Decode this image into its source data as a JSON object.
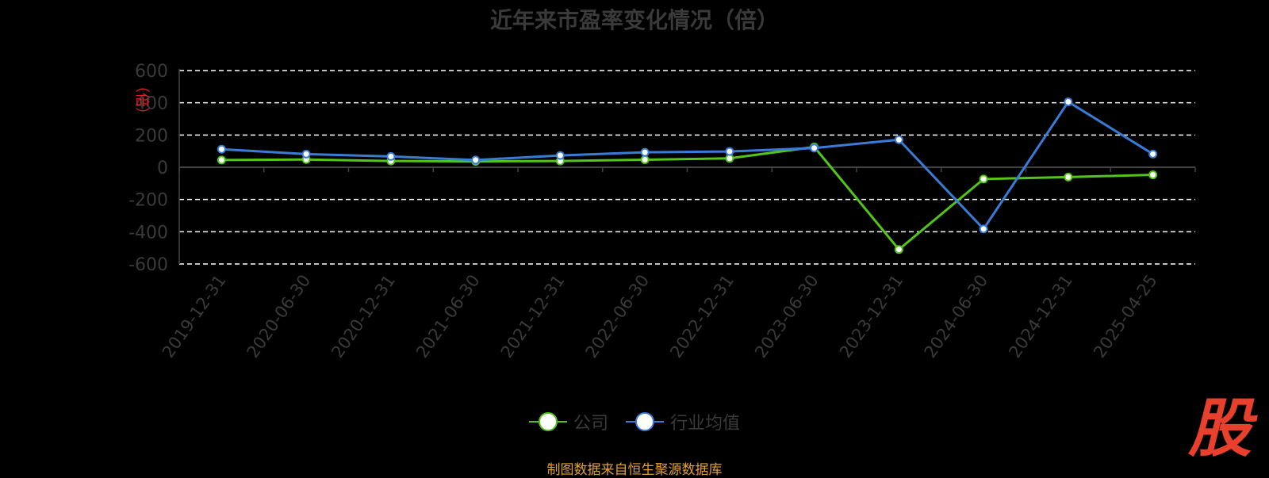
{
  "title": "近年来市盈率变化情况（倍）",
  "source_note": "制图数据来自恒生聚源数据库",
  "watermark": "股",
  "colors": {
    "company": "#52c41a",
    "industry": "#3a7bd5",
    "ylabel": "#e02020"
  },
  "legend": [
    {
      "label": "公司",
      "color": "#52c41a"
    },
    {
      "label": "行业均值",
      "color": "#3a7bd5"
    }
  ],
  "chart_data": {
    "type": "line",
    "title": "近年来市盈率变化情况（倍）",
    "ylabel": "倍",
    "ylim": [
      -600,
      600
    ],
    "yticks": [
      600,
      400,
      200,
      0,
      -200,
      -400,
      -600
    ],
    "grid": true,
    "legend_position": "bottom",
    "categories": [
      "2019-12-31",
      "2020-06-30",
      "2020-12-31",
      "2021-06-30",
      "2021-12-31",
      "2022-06-30",
      "2022-12-31",
      "2023-06-30",
      "2023-12-31",
      "2024-06-30",
      "2024-12-31",
      "2025-04-25"
    ],
    "series": [
      {
        "name": "公司",
        "color": "#52c41a",
        "values": [
          45,
          47.77,
          38.89,
          36.57,
          38.71,
          46.52,
          55.34,
          126,
          -510,
          -73,
          -61,
          -47
        ]
      },
      {
        "name": "行业均值",
        "color": "#3a7bd5",
        "values": [
          112,
          82,
          67,
          45,
          73,
          93,
          98,
          119,
          171,
          -383,
          406,
          82
        ]
      }
    ]
  }
}
